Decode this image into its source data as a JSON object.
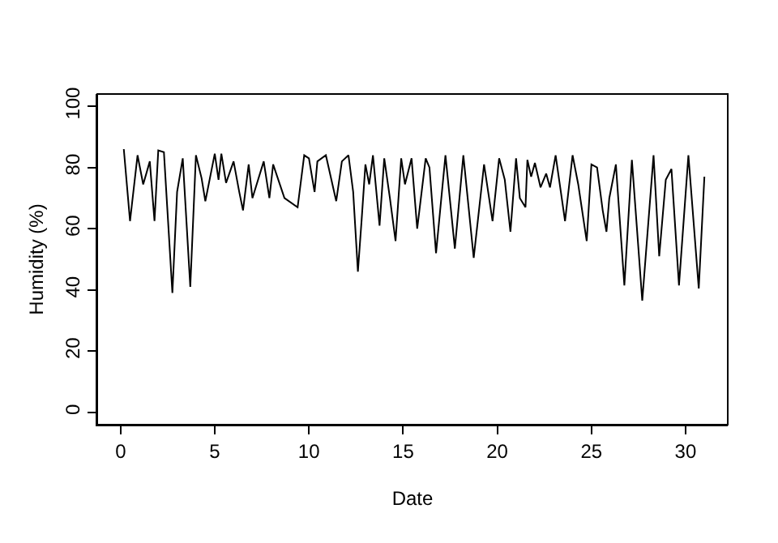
{
  "chart_data": {
    "type": "line",
    "xlabel": "Date",
    "ylabel": "Humidity (%)",
    "x": [
      0.17,
      0.5,
      0.9,
      1.2,
      1.55,
      1.8,
      2.0,
      2.3,
      2.75,
      3.0,
      3.3,
      3.7,
      4.0,
      4.3,
      4.5,
      5.0,
      5.2,
      5.35,
      5.6,
      6.0,
      6.3,
      6.5,
      6.8,
      7.0,
      7.6,
      7.9,
      8.1,
      8.7,
      9.4,
      9.75,
      10.0,
      10.3,
      10.45,
      10.9,
      11.45,
      11.75,
      12.1,
      12.35,
      12.6,
      12.8,
      13.0,
      13.2,
      13.4,
      13.75,
      14.0,
      14.3,
      14.6,
      14.9,
      15.1,
      15.45,
      15.75,
      16.2,
      16.4,
      16.75,
      17.25,
      17.75,
      18.2,
      18.75,
      19.3,
      19.75,
      20.1,
      20.4,
      20.7,
      21.0,
      21.2,
      21.5,
      21.6,
      21.8,
      22.0,
      22.3,
      22.6,
      22.8,
      23.1,
      23.6,
      24.0,
      24.3,
      24.75,
      25.0,
      25.3,
      25.6,
      25.8,
      25.95,
      26.3,
      26.75,
      27.15,
      27.7,
      28.3,
      28.6,
      28.95,
      29.25,
      29.65,
      30.15,
      30.7,
      31.0
    ],
    "values": [
      86,
      62.5,
      84,
      74.5,
      82,
      62.5,
      85.6,
      85,
      39,
      72,
      83,
      41,
      84,
      76.5,
      69,
      84.5,
      76,
      84.5,
      75,
      82,
      72,
      66,
      81,
      70,
      82,
      70,
      81,
      70,
      67,
      84,
      83,
      72,
      82,
      84,
      69,
      82,
      84,
      72,
      46,
      63,
      81,
      74.5,
      84,
      61,
      83,
      70,
      56,
      83,
      74.5,
      83,
      60,
      83,
      80,
      52,
      84,
      53.5,
      84,
      50.5,
      81,
      62.5,
      83,
      76,
      59,
      83,
      70,
      67,
      82.5,
      77,
      81.5,
      73.5,
      78,
      73.5,
      84,
      62.5,
      84,
      74.5,
      56,
      81,
      80,
      66,
      59,
      70,
      81,
      41.5,
      82.5,
      36.5,
      84,
      51,
      76,
      79.5,
      41.5,
      84,
      40.5,
      77
    ],
    "color": "#000000",
    "xlim": [
      -1.24,
      32.24
    ],
    "ylim": [
      -4,
      104
    ],
    "xticks": [
      0,
      5,
      10,
      15,
      20,
      25,
      30
    ],
    "yticks": [
      0,
      20,
      40,
      60,
      80,
      100
    ],
    "marker": "none",
    "line_style": "solid"
  }
}
